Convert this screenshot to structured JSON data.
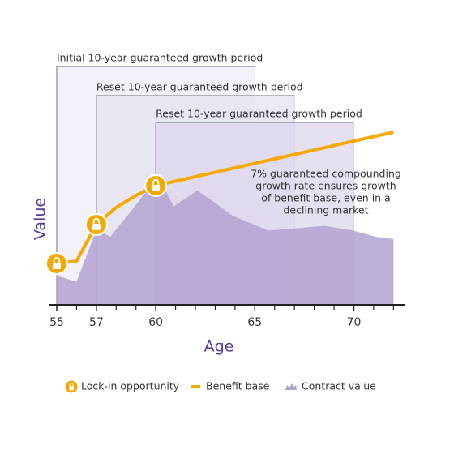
{
  "chart_data": {
    "type": "line",
    "xlabel": "Age",
    "ylabel": "Value",
    "xlim": [
      55,
      72.6
    ],
    "ylim": [
      0,
      100
    ],
    "xticks": [
      55,
      57,
      60,
      65,
      70
    ],
    "xminor_ticks": [
      56,
      58,
      59,
      61,
      62,
      63,
      64,
      66,
      67,
      68,
      69,
      71,
      72
    ],
    "periods": [
      {
        "label": "Initial 10-year guaranteed growth period",
        "start": 55,
        "end": 65,
        "top": 98
      },
      {
        "label": "Reset 10-year guaranteed growth period",
        "start": 57,
        "end": 67,
        "top": 86
      },
      {
        "label": "Reset 10-year guaranteed growth period",
        "start": 60,
        "end": 70,
        "top": 75
      }
    ],
    "series": [
      {
        "name": "Contract value",
        "type": "area",
        "color": "#b2a2d0",
        "x": [
          55,
          56,
          57,
          57.7,
          58.7,
          59.7,
          60,
          60.9,
          62.1,
          62.9,
          63.9,
          65.7,
          68.5,
          70,
          71.1,
          72
        ],
        "values": [
          12,
          9.5,
          31,
          28,
          38,
          48.5,
          54.5,
          40.5,
          47,
          42.5,
          36.5,
          30.5,
          32.5,
          30.5,
          28,
          27
        ]
      },
      {
        "name": "Benefit base",
        "type": "line",
        "color": "#f5a800",
        "x": [
          55,
          56,
          57,
          58,
          59,
          60,
          72
        ],
        "values": [
          17,
          18,
          33,
          40,
          45,
          49,
          71
        ]
      }
    ],
    "lock_ins": {
      "name": "Lock-in opportunity",
      "color": "#f5a800",
      "x": [
        55,
        57,
        60
      ]
    },
    "annotation": [
      "7% guaranteed compounding",
      "growth rate ensures growth",
      "of benefit base, even in a",
      "declining market"
    ]
  }
}
